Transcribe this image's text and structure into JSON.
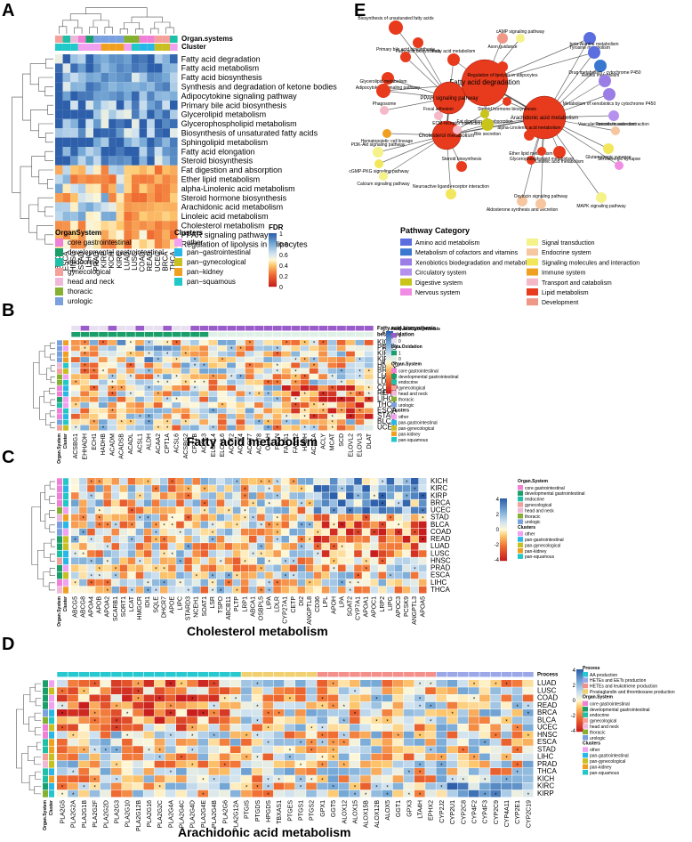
{
  "panels": {
    "A": {
      "label": "A",
      "top_tracks": [
        "Organ.systems",
        "Cluster"
      ],
      "pathways": [
        "Fatty acid degradation",
        "Fatty acid metabolism",
        "Fatty acid biosynthesis",
        "Synthesis and degradation of ketone bodies",
        "Adipocytokine signaling pathway",
        "Primary bile acid biosynthesis",
        "Glycerolipid metabolism",
        "Glycerophospholipid metabolism",
        "Biosynthesis of unsaturated fatty acids",
        "Sphingolipid metabolism",
        "Fatty acid elongation",
        "Steroid biosynthesis",
        "Fat digestion and absorption",
        "Ether lipid metabolism",
        "alpha-Linolenic acid metabolism",
        "Steroid hormone biosynthesis",
        "Arachidonic acid metabolism",
        "Linoleic acid metabolism",
        "Cholesterol metabolism",
        "PPAR signaling pathway",
        "Regulation of lipolysis in adipocytes"
      ],
      "cancers": [
        "BLCA",
        "ESCA",
        "HNSC",
        "STAD",
        "LIHC",
        "PRAD",
        "KIRP",
        "KICH",
        "KIRC",
        "LUAD",
        "LUSC",
        "COAD",
        "READ",
        "UCEC",
        "BRCA",
        "THCA"
      ],
      "organ_legend_title": "OrganSystem",
      "organ_legend": [
        "core gastrointestinal",
        "developmental gastrointestinal",
        "endocrine",
        "gynecological",
        "head and neck",
        "thoracic",
        "urologic"
      ],
      "cluster_legend_title": "Clusters",
      "cluster_legend": [
        "other",
        "pan−gastrointestinal",
        "pan−gynecological",
        "pan−kidney",
        "pan−squamous"
      ],
      "fdr_title": "FDR",
      "fdr_ticks": [
        "1",
        "0.8",
        "0.6",
        "0.4",
        "0.2",
        "0"
      ]
    },
    "B": {
      "label": "B",
      "title": "Fatty acid metabolism",
      "top_tracks": [
        "Fatty.acid.biosynthesis",
        "beta.Oxidation"
      ],
      "rows": [
        "KICH",
        "PRAD",
        "KIRC",
        "KIRP",
        "HNSC",
        "BRCA",
        "LUAD",
        "LUSC",
        "COAD",
        "READ",
        "LIHC",
        "THCA",
        "ESCA",
        "STAD",
        "BLCA",
        "UCEC"
      ],
      "genes": [
        "ACSBG1",
        "EHHADH",
        "ECH1",
        "HADHB",
        "ACADM",
        "ACADSB",
        "ACADL",
        "ACSL1",
        "ALDH",
        "ACAA2",
        "CPT1A",
        "ACSL6",
        "ACSBG2",
        "CPT1B",
        "ACSL3",
        "ELOVL4",
        "ELOVL6",
        "ACOT2",
        "ACOT4",
        "ACOT7",
        "ACOT8",
        "OLAH",
        "FASN",
        "FADS1",
        "FADS2",
        "HADH",
        "ACACA",
        "ACLY",
        "MCAT",
        "SCD",
        "ELOVL2",
        "ELOVL3",
        "DLAT"
      ],
      "side_labels": [
        "Organ.System",
        "Cluster"
      ],
      "legend_scale": [
        "4",
        "2",
        "0",
        "-2",
        "-4"
      ],
      "legend_fab_title": "Fatty.acid.biosynthesis",
      "legend_fab_ticks": [
        "1",
        "0"
      ],
      "legend_box_title": "beta.Oxidation",
      "legend_box_ticks": [
        "1",
        "0"
      ],
      "legend_organ_title": "Organ.System",
      "legend_organ": [
        "core gastrointestinal",
        "developmental gastrointestinal",
        "endocrine",
        "gynecological",
        "head and neck",
        "thoracic",
        "urologic"
      ],
      "legend_cluster_title": "Clusters",
      "legend_cluster": [
        "other",
        "pan-gastrointestinal",
        "pan-gynecological",
        "pan-kidney",
        "pan-squamous"
      ]
    },
    "C": {
      "label": "C",
      "title": "Cholesterol metabolism",
      "rows": [
        "KICH",
        "KIRC",
        "KIRP",
        "BRCA",
        "UCEC",
        "STAD",
        "BLCA",
        "COAD",
        "READ",
        "LUAD",
        "LUSC",
        "HNSC",
        "PRAD",
        "ESCA",
        "LIHC",
        "THCA"
      ],
      "genes": [
        "ABCG5",
        "ABCG8",
        "APOA4",
        "APOB",
        "APOA2",
        "SCARB1",
        "SORT1",
        "LCAT",
        "HMGCR",
        "IDI1",
        "SQLE",
        "DHCR7",
        "APOE",
        "LIPC",
        "STARD3",
        "NCEH1",
        "SOAT1",
        "LSR",
        "TSPO",
        "ABCB11",
        "PLTP",
        "LRP1",
        "ABCA1",
        "OSBPL5",
        "LIPA",
        "LDLR",
        "CYP27A1",
        "CETP",
        "DI2",
        "ANGPTL8",
        "CD36",
        "LPL",
        "APOH",
        "LPA",
        "SOAT2",
        "CYP7A1",
        "APOA1",
        "APOC1",
        "LRP2",
        "LIPG",
        "APOC3",
        "PCSK9",
        "ANGPTL3",
        "APOA5"
      ],
      "side_labels": [
        "Organ.System",
        "Cluster"
      ],
      "legend_scale": [
        "4",
        "2",
        "0",
        "-2",
        "-4"
      ],
      "legend_organ_title": "Organ.System",
      "legend_organ": [
        "core gastrointestinal",
        "developmental gastrointestinal",
        "endocrine",
        "gynecological",
        "head and neck",
        "thoracic",
        "urologic"
      ],
      "legend_cluster_title": "Clusters",
      "legend_cluster": [
        "other",
        "pan-gastrointestinal",
        "pan-gynecological",
        "pan-kidney",
        "pan-squamous"
      ]
    },
    "D": {
      "label": "D",
      "title": "Arachidonic acid metabolism",
      "top_track": "Process",
      "rows": [
        "LUAD",
        "LUSC",
        "COAD",
        "READ",
        "BRCA",
        "BLCA",
        "UCEC",
        "HNSC",
        "ESCA",
        "STAD",
        "LIHC",
        "PRAD",
        "THCA",
        "KICH",
        "KIRC",
        "KIRP"
      ],
      "genes": [
        "PLA2G5",
        "PLA2G2A",
        "PLA2G1B",
        "PLA2G2F",
        "PLA2G2D",
        "PLA2G3",
        "PLA2G10",
        "PLA2G12B",
        "PLA2G16",
        "PLA2G2C",
        "PLA2G4A",
        "PLA2G4C",
        "PLA2G4D",
        "PLA2G4E",
        "PLA2G4B",
        "PLA2G6",
        "PLA2G12A",
        "PTGIS",
        "PTGDS",
        "HPGDS",
        "TBXAS1",
        "PTGES",
        "PTGS1",
        "PTGS2",
        "GPX1",
        "GGT5",
        "ALOX12",
        "ALOX15",
        "ALOX15B",
        "ALOX12B",
        "ALOX5",
        "GGT1",
        "GPX3",
        "LTA4H",
        "EPHX2",
        "CYP2J2",
        "CYP2U1",
        "CYP2C8",
        "CYP4F2",
        "CYP4F3",
        "CYP2C9",
        "CYP4A11",
        "CYP2E1",
        "CYP2C19"
      ],
      "side_labels": [
        "Organ.System",
        "Cluster"
      ],
      "legend_scale": [
        "4",
        "2",
        "0",
        "-2",
        "-4"
      ],
      "legend_process_title": "Process",
      "legend_process": [
        "AA production",
        "HETEs and EETs production",
        "HETEs and leukotriene production",
        "Prostaglandin and thromboxane production"
      ],
      "legend_organ_title": "Organ.System",
      "legend_organ": [
        "core gastrointestinal",
        "developmental gastrointestinal",
        "endocrine",
        "gynecological",
        "head and neck",
        "thoracic",
        "urologic"
      ],
      "legend_cluster_title": "Clusters",
      "legend_cluster": [
        "other",
        "pan-gastrointestinal",
        "pan-gynecological",
        "pan-kidney",
        "pan-squamous"
      ]
    },
    "E": {
      "label": "E",
      "hubs": [
        "Fatty acid degradation",
        "PPAR signaling pathway",
        "Arachidonic acid metabolism",
        "Cholesterol metabolism"
      ],
      "nodes": [
        "Axon guidance",
        "cAMP signaling pathway",
        "Tyrosine metabolism",
        "beta-Alanine metabolism",
        "Retinol metabolism",
        "Drug metabolism - cytochrome P450",
        "Metabolism of xenobiotics by cytochrome P450",
        "Biosynthesis of unsaturated fatty acids",
        "Fatty acid biosynthesis",
        "Primary bile acid biosynthesis",
        "Regulation of lipolysis in adipocytes",
        "Fatty acid metabolism",
        "Adipocytokine signaling pathway",
        "Glycerolipid metabolism",
        "Steroid hormone biosynthesis",
        "Phagosome",
        "Fat digestion and absorption",
        "Focal adhesion",
        "Bile secretion",
        "ECM-receptor interaction",
        "Vascular smooth muscle contraction",
        "Pancreatic secretion",
        "Hematopoietic cell lineage",
        "alpha-Linolenic acid metabolism",
        "Glutamatergic synapse",
        "PI3K-Akt signaling pathway",
        "Linoleic acid metabolism",
        "Serotonergic synapse",
        "cGMP-PKG signaling pathway",
        "Ether lipid metabolism",
        "Glycerophospholipid metabolism",
        "Steroid biosynthesis",
        "Calcium signaling pathway",
        "Neuroactive ligand-receptor interaction",
        "Aldosterone synthesis and secretion",
        "Oxytocin signaling pathway",
        "MAPK signaling pathway"
      ],
      "legend_title": "Pathway Category",
      "categories": [
        {
          "name": "Amino acid metabolism",
          "color": "#5b6ee0"
        },
        {
          "name": "Metabolism of cofactors and vitamins",
          "color": "#3a78d0"
        },
        {
          "name": "Xenobiotics biodegradation and metabolism",
          "color": "#9a7ee6"
        },
        {
          "name": "Circulatory system",
          "color": "#b592ee"
        },
        {
          "name": "Digestive system",
          "color": "#c8c41a"
        },
        {
          "name": "Nervous system",
          "color": "#f08ce4"
        },
        {
          "name": "Signal transduction",
          "color": "#f6f28a"
        },
        {
          "name": "Endocrine system",
          "color": "#f6c6a0"
        },
        {
          "name": "Signaling molecules and interaction",
          "color": "#f2e65a"
        },
        {
          "name": "Immune system",
          "color": "#f0a020"
        },
        {
          "name": "Transport and catabolism",
          "color": "#f4b8c6"
        },
        {
          "name": "Lipid metabolism",
          "color": "#e83a1c"
        },
        {
          "name": "Development",
          "color": "#f09888"
        }
      ]
    }
  }
}
